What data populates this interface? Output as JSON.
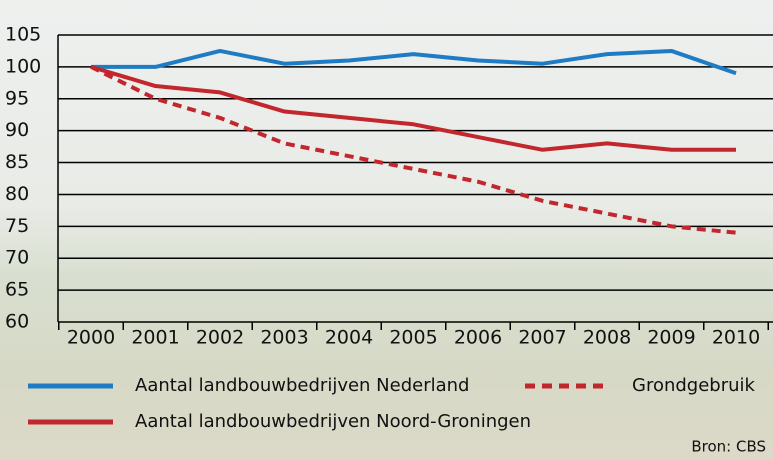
{
  "chart_data": {
    "type": "line",
    "categories": [
      "2000",
      "2001",
      "2002",
      "2003",
      "2004",
      "2005",
      "2006",
      "2007",
      "2008",
      "2009",
      "2010"
    ],
    "series": [
      {
        "name": "Aantal landbouwbedrijven Nederland",
        "color": "#1f7cc4",
        "dashed": false,
        "values": [
          100,
          100,
          102.5,
          100.5,
          101,
          102,
          101,
          100.5,
          102,
          102.5,
          99
        ]
      },
      {
        "name": "Grondgebruik",
        "color": "#c1272d",
        "dashed": true,
        "values": [
          100,
          95,
          92,
          88,
          86,
          84,
          82,
          79,
          77,
          75,
          74
        ]
      },
      {
        "name": "Aantal landbouwbedrijven Noord-Groningen",
        "color": "#c1272d",
        "dashed": false,
        "values": [
          100,
          97,
          96,
          93,
          92,
          91,
          89,
          87,
          88,
          87,
          87
        ]
      }
    ],
    "ylim": [
      60,
      105
    ],
    "yticks": [
      60,
      65,
      70,
      75,
      80,
      85,
      90,
      95,
      100,
      105
    ],
    "grid": true,
    "legend": "bottom",
    "source": "Bron: CBS"
  }
}
